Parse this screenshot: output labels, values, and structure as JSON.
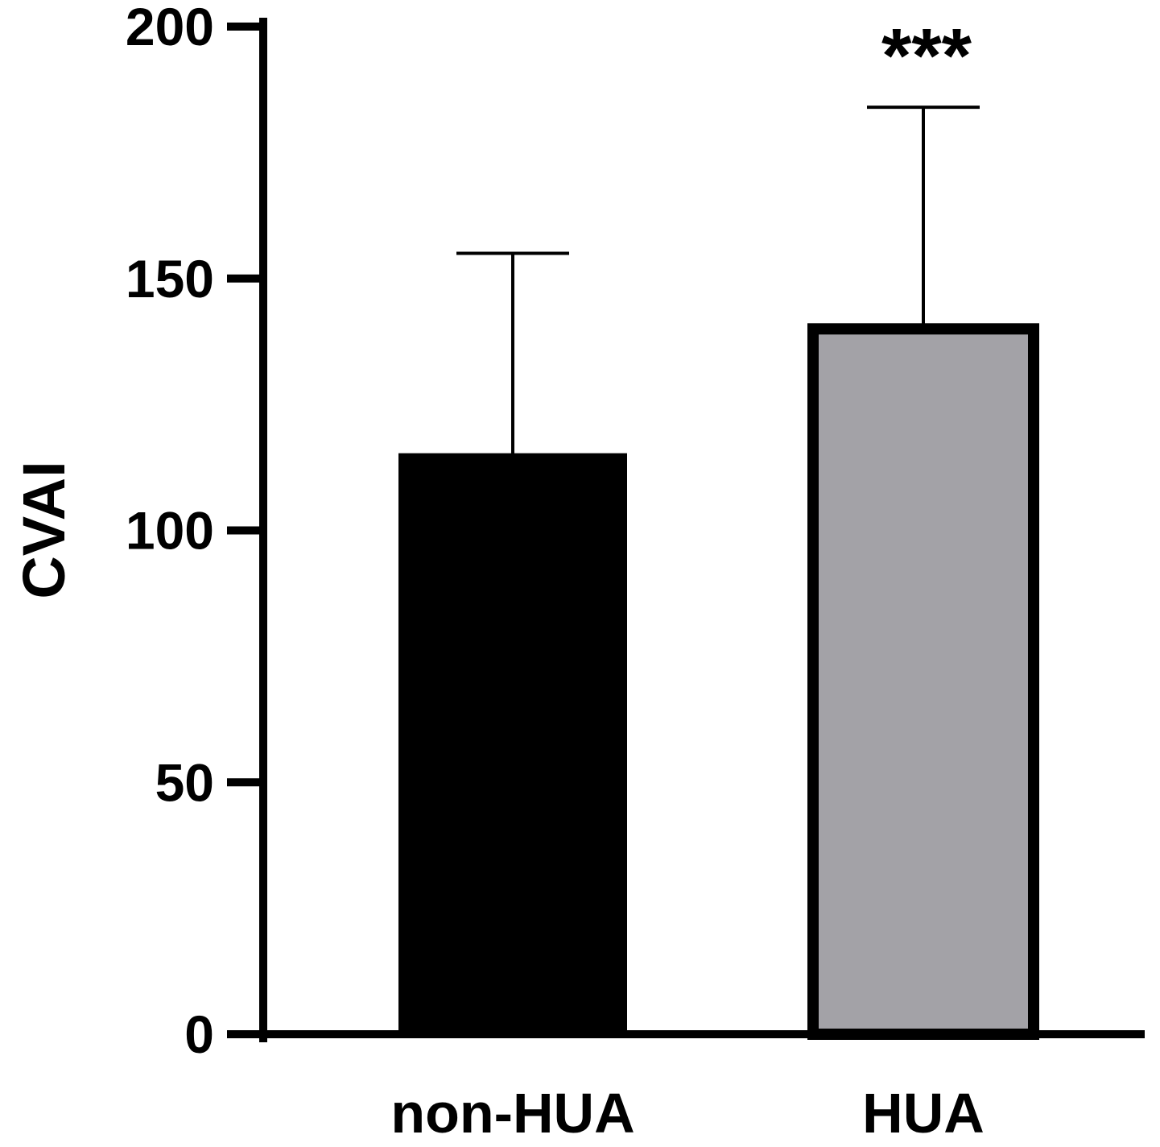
{
  "chart_data": {
    "type": "bar",
    "categories": [
      "non-HUA",
      "HUA"
    ],
    "series": [
      {
        "values": [
          115,
          140
        ],
        "error_upper": [
          155,
          184
        ],
        "colors": [
          "#000000",
          "#a3a2a7"
        ],
        "outline": [
          "#000000",
          "#000000"
        ]
      }
    ],
    "annotations": [
      "",
      "***"
    ],
    "title": "",
    "xlabel": "",
    "ylabel": "CVAI",
    "ylim": [
      0,
      200
    ],
    "yticks": [
      0,
      50,
      100,
      150,
      200
    ],
    "ytick_labels": [
      "0",
      "50",
      "100",
      "150",
      "200"
    ],
    "grid": false,
    "legend": "none"
  }
}
